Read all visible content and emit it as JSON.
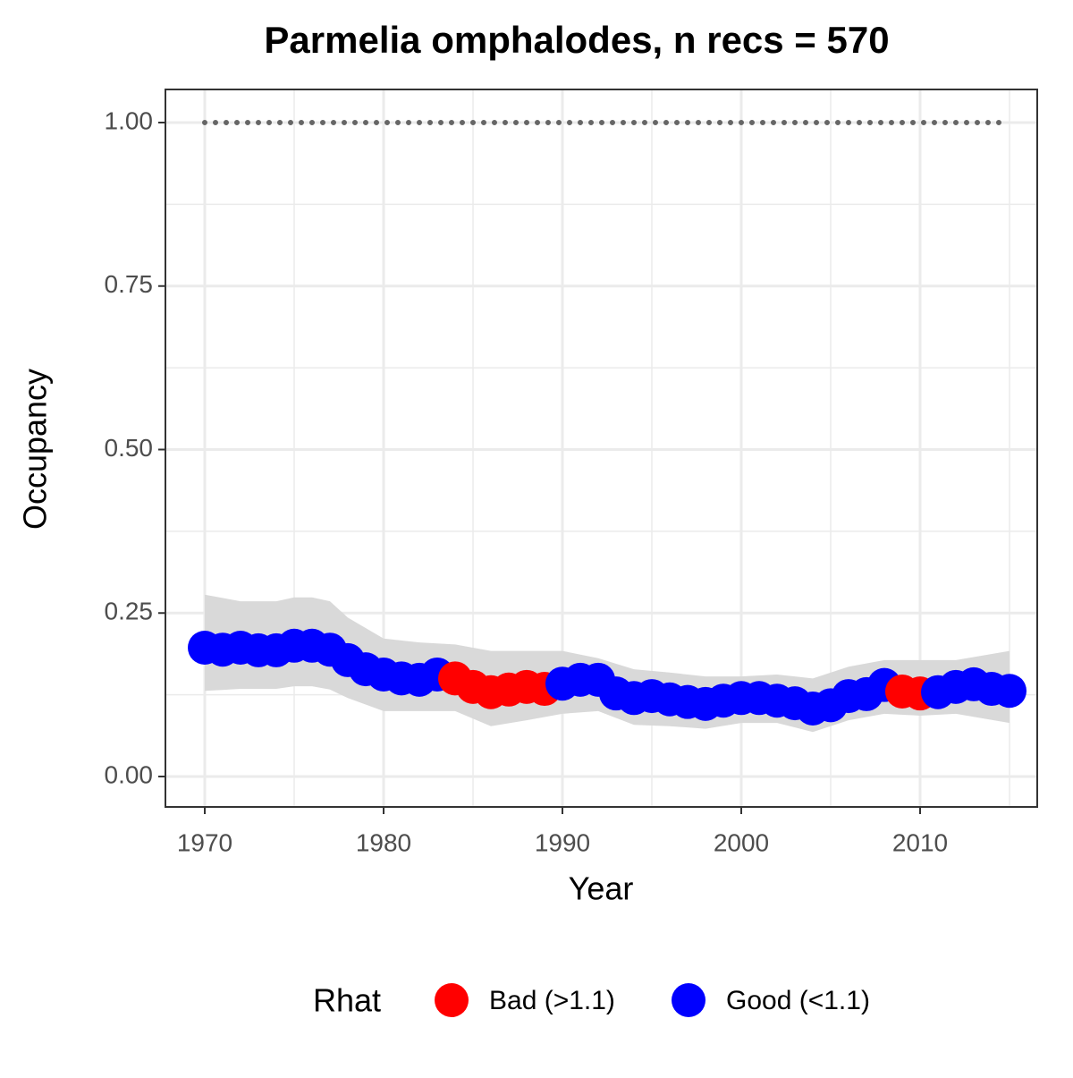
{
  "chart_data": {
    "type": "scatter",
    "title": "Parmelia omphalodes, n recs = 570",
    "x_label": "Year",
    "y_label": "Occupancy",
    "legend_title": "Rhat",
    "legend_position": "bottom",
    "xlim": [
      1967.8,
      2016.55
    ],
    "ylim": [
      -0.0465,
      1.0506
    ],
    "xticks": [
      1970,
      1980,
      1990,
      2000,
      2010
    ],
    "yticks": [
      {
        "value": 0,
        "label": "0.00"
      },
      {
        "value": 0.25,
        "label": "0.25"
      },
      {
        "value": 0.5,
        "label": "0.50"
      },
      {
        "value": 0.75,
        "label": "0.75"
      },
      {
        "value": 1,
        "label": "1.00"
      }
    ],
    "grid": true,
    "minor_grid": true,
    "x": [
      1970,
      1971,
      1972,
      1973,
      1974,
      1975,
      1976,
      1977,
      1978,
      1979,
      1980,
      1981,
      1982,
      1983,
      1984,
      1985,
      1986,
      1987,
      1988,
      1989,
      1990,
      1991,
      1992,
      1993,
      1994,
      1995,
      1996,
      1997,
      1998,
      1999,
      2000,
      2001,
      2002,
      2003,
      2004,
      2005,
      2006,
      2007,
      2008,
      2009,
      2010,
      2011,
      2012,
      2013,
      2014,
      2015
    ],
    "series": [
      {
        "name": "Bad (>1.1)",
        "color": "#ff0000",
        "values": [
          null,
          null,
          null,
          null,
          null,
          null,
          null,
          null,
          null,
          null,
          null,
          null,
          null,
          null,
          0.15,
          0.137,
          0.129,
          0.133,
          0.137,
          0.134,
          null,
          null,
          null,
          null,
          null,
          null,
          null,
          null,
          null,
          null,
          null,
          null,
          null,
          null,
          null,
          null,
          null,
          null,
          null,
          0.13,
          0.127,
          null,
          null,
          null,
          null,
          null
        ]
      },
      {
        "name": "Good (<1.1)",
        "color": "#0000ff",
        "values": [
          0.197,
          0.194,
          0.197,
          0.193,
          0.193,
          0.2,
          0.2,
          0.194,
          0.178,
          0.164,
          0.156,
          0.15,
          0.148,
          0.156,
          null,
          null,
          null,
          null,
          null,
          null,
          0.142,
          0.148,
          0.148,
          0.127,
          0.12,
          0.123,
          0.118,
          0.114,
          0.111,
          0.116,
          0.12,
          0.12,
          0.116,
          0.112,
          0.104,
          0.109,
          0.123,
          0.126,
          0.14,
          null,
          null,
          0.129,
          0.137,
          0.141,
          0.134,
          0.131
        ]
      }
    ],
    "ribbon": {
      "color": "#d9d9d9",
      "x": [
        1970,
        1972,
        1974,
        1975,
        1976,
        1977,
        1978,
        1980,
        1982,
        1984,
        1986,
        1988,
        1990,
        1992,
        1994,
        1996,
        1998,
        2000,
        2002,
        2004,
        2006,
        2008,
        2010,
        2012,
        2015
      ],
      "upper": [
        0.278,
        0.268,
        0.268,
        0.274,
        0.274,
        0.268,
        0.243,
        0.211,
        0.205,
        0.202,
        0.192,
        0.192,
        0.192,
        0.181,
        0.164,
        0.159,
        0.153,
        0.153,
        0.156,
        0.15,
        0.168,
        0.178,
        0.178,
        0.178,
        0.192
      ],
      "lower": [
        0.131,
        0.134,
        0.134,
        0.138,
        0.138,
        0.133,
        0.12,
        0.1,
        0.1,
        0.1,
        0.077,
        0.086,
        0.096,
        0.1,
        0.079,
        0.077,
        0.073,
        0.082,
        0.082,
        0.068,
        0.086,
        0.096,
        0.093,
        0.096,
        0.082
      ]
    },
    "reference_line": {
      "y": 1,
      "x": [
        1970,
        2015
      ],
      "color": "#666666"
    }
  }
}
